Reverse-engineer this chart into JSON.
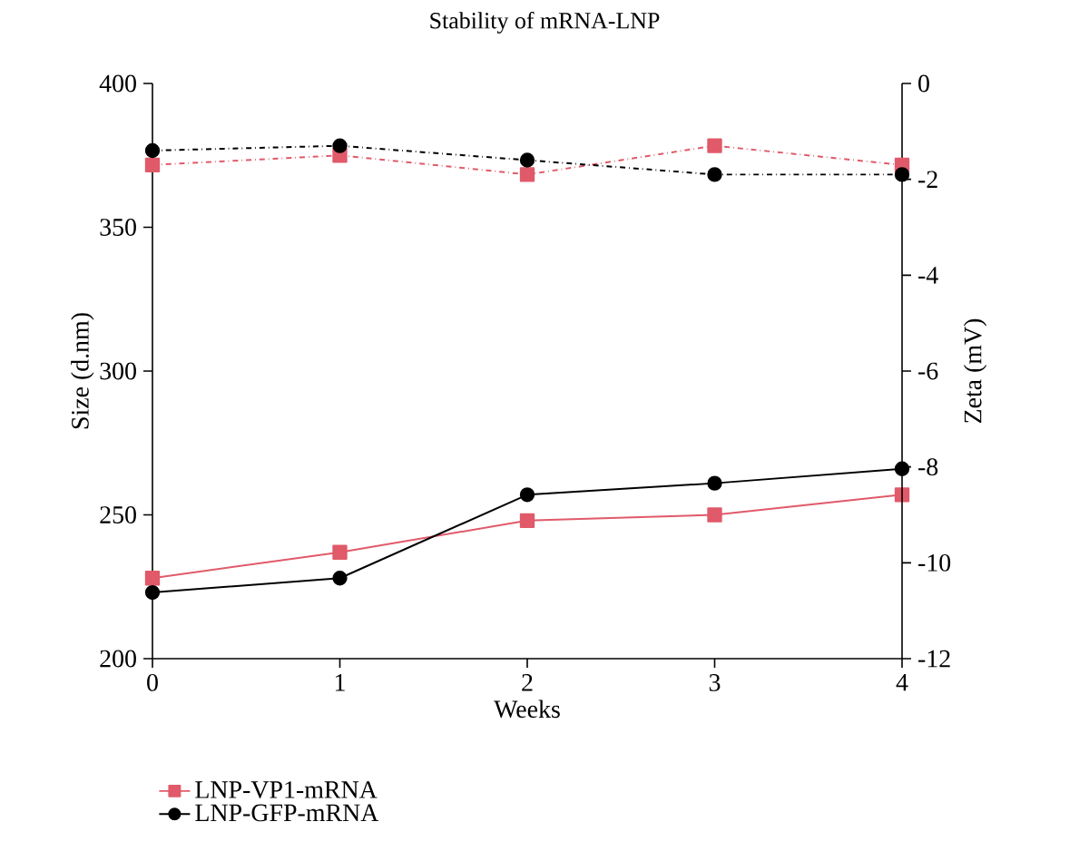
{
  "chart_data": {
    "type": "line",
    "title": "Stability of mRNA-LNP",
    "xlabel": "Weeks",
    "ylabel": "Size (d.nm)",
    "y2label": "Zeta (mV)",
    "x": [
      0,
      1,
      2,
      3,
      4
    ],
    "xlim": [
      0,
      4
    ],
    "xticks": [
      0,
      1,
      2,
      3,
      4
    ],
    "ylim": [
      200,
      400
    ],
    "yticks": [
      200,
      250,
      300,
      350,
      400
    ],
    "y2lim": [
      -12,
      0
    ],
    "y2ticks": [
      -12,
      -10,
      -8,
      -6,
      -4,
      -2,
      0
    ],
    "legend": "bottom left",
    "series": [
      {
        "name": "LNP-VP1-mRNA",
        "color": "#e05a6a",
        "marker": "square",
        "line_style": "solid",
        "values": [
          228,
          237,
          248,
          250,
          257
        ]
      },
      {
        "name": "LNP-GFP-mRNA",
        "color": "#000000",
        "marker": "circle",
        "line_style": "solid",
        "values": [
          223,
          228,
          257,
          261,
          266
        ]
      },
      {
        "color": "#e05a6a",
        "marker": "square",
        "line_style": "dashed",
        "axis": "y2",
        "values": [
          -1.7,
          -1.5,
          -1.9,
          -1.3,
          -1.7
        ]
      },
      {
        "color": "#000000",
        "marker": "circle",
        "line_style": "dashed",
        "axis": "y2",
        "values": [
          -1.4,
          -1.3,
          -1.6,
          -1.9,
          -1.9
        ]
      }
    ]
  }
}
